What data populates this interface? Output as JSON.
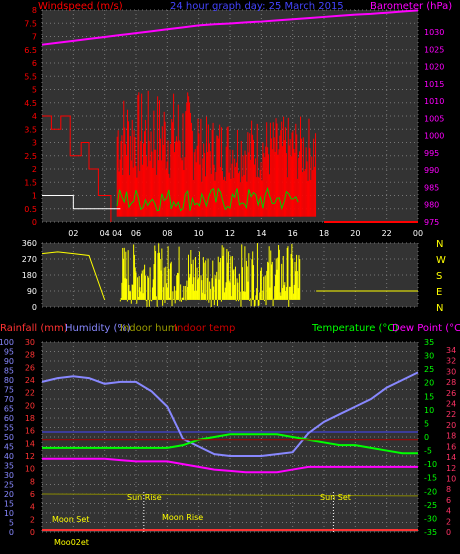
{
  "header": {
    "title": "24 hour graph day: 25 March 2015",
    "left_label": "Windspeed (m/s)",
    "right_label": "Barometer (hPa)"
  },
  "colors": {
    "wind": "#ff0000",
    "gust": "#00cc00",
    "baro": "#ff00ff",
    "dir": "#ffff00",
    "rain": "#ff3333",
    "humidity": "#8888ff",
    "indoor_hum": "#888800",
    "indoor_temp": "#aa0000",
    "temp": "#00ff00",
    "dew": "#ff00ff",
    "grid": "#777777"
  },
  "wind_axis": [
    "8",
    "7.5",
    "7",
    "6.5",
    "6",
    "5.5",
    "5",
    "4.5",
    "4",
    "3.5",
    "3",
    "2.5",
    "2",
    "1.5",
    "1",
    "0.5",
    "0"
  ],
  "baro_axis": [
    "1030",
    "1025",
    "1020",
    "1015",
    "1010",
    "1005",
    "1000",
    "995",
    "990",
    "985",
    "980",
    "975"
  ],
  "time_axis": [
    "02",
    "04",
    "04",
    "06",
    "08",
    "10",
    "12",
    "14",
    "16",
    "18",
    "20",
    "22",
    "00"
  ],
  "dir_axis": [
    "360",
    "270",
    "180",
    "90",
    "0"
  ],
  "dir_letters": [
    "N",
    "W",
    "S",
    "E",
    "N"
  ],
  "bottom_labels": {
    "rain": "Rainfall (mm)",
    "humidity": "Humidity (%)",
    "indoor_hum": "Indoor hum",
    "indoor_temp": "Indoor temp",
    "temp": "Temperature (°C)",
    "dew": "Dew Point (°C)"
  },
  "hum_axis": [
    "100",
    "95",
    "90",
    "85",
    "80",
    "75",
    "70",
    "65",
    "60",
    "55",
    "50",
    "45",
    "40",
    "35",
    "30",
    "25",
    "20",
    "15",
    "10",
    "5",
    "0"
  ],
  "rain_axis": [
    "30",
    "28",
    "26",
    "24",
    "22",
    "20",
    "18",
    "16",
    "14",
    "12",
    "10",
    "8",
    "6",
    "4",
    "2",
    "0"
  ],
  "temp_axis": [
    "35",
    "30",
    "25",
    "20",
    "15",
    "10",
    "5",
    "0",
    "-5",
    "-10",
    "-15",
    "-20",
    "-25",
    "-30",
    "-35"
  ],
  "temp_axis2": [
    "34",
    "32",
    "30",
    "28",
    "26",
    "24",
    "22",
    "20",
    "18",
    "16",
    "14",
    "12",
    "10",
    "8",
    "6",
    "4",
    "2",
    "0"
  ],
  "annotations": {
    "moon_set": "Moon Set",
    "sun_rise": "Sun Rise",
    "moon_rise": "Moon Rise",
    "sun_set": "Sun Set",
    "moon_time": "Moo02et"
  },
  "chart_data": [
    {
      "type": "line",
      "title": "24 hour graph day: 25 March 2015",
      "ylabel": "Windspeed (m/s)",
      "y2label": "Barometer (hPa)",
      "x_hours": [
        1,
        2,
        3,
        4,
        5,
        6,
        7,
        8,
        9,
        10,
        11,
        12,
        13,
        14,
        15,
        16,
        17,
        18,
        19,
        20,
        21,
        22,
        23,
        24
      ],
      "series": [
        {
          "name": "Barometer (hPa)",
          "axis": "right",
          "values": [
            1021.5,
            1022.0,
            1022.5,
            1023.0,
            1023.5,
            1024.0,
            1024.5,
            1025.0,
            1025.5,
            1026.0,
            1026.3,
            1026.5,
            1026.8,
            1027.0,
            1027.3,
            1027.6,
            1027.9,
            1028.2,
            1028.5,
            1028.8,
            1029.0,
            1029.3,
            1029.6,
            1029.9
          ]
        }
      ],
      "ylim": [
        0,
        8
      ],
      "y2lim": [
        975,
        1030
      ]
    },
    {
      "type": "line",
      "ylim": [
        0,
        360
      ],
      "x_hours": [
        0,
        1,
        2,
        3,
        4,
        5,
        6,
        7,
        8,
        9,
        10,
        11,
        12,
        13,
        14,
        15,
        16,
        17,
        18,
        19,
        20,
        21,
        22,
        23,
        24
      ],
      "values": [
        300,
        310,
        300,
        290,
        40,
        60,
        200,
        220,
        180,
        210,
        200,
        190,
        230,
        200,
        210,
        190,
        210,
        150,
        90,
        90,
        90,
        90,
        90,
        90,
        90
      ]
    },
    {
      "type": "line",
      "x_hours": [
        0,
        1,
        2,
        3,
        4,
        5,
        6,
        7,
        8,
        9,
        10,
        11,
        12,
        13,
        14,
        15,
        16,
        17,
        18,
        19,
        20,
        21,
        22,
        23,
        24
      ],
      "series": [
        {
          "name": "Humidity (%)",
          "axis": "left",
          "values": [
            79,
            81,
            82,
            81,
            78,
            79,
            79,
            74,
            66,
            49,
            45,
            41,
            40,
            40,
            40,
            41,
            42,
            52,
            58,
            62,
            66,
            70,
            76,
            80,
            84
          ]
        },
        {
          "name": "Temperature (°C)",
          "axis": "right",
          "values": [
            -4,
            -4,
            -4,
            -4,
            -4,
            -4,
            -4,
            -4,
            -4,
            -3,
            -1,
            0,
            1,
            1,
            1,
            1,
            0,
            -1,
            -2,
            -3,
            -3,
            -4,
            -5,
            -6,
            -6
          ]
        },
        {
          "name": "Dew Point (°C)",
          "axis": "right",
          "values": [
            -8,
            -8,
            -8,
            -8,
            -8,
            -8.5,
            -9,
            -9,
            -9,
            -10,
            -11,
            -12,
            -12.5,
            -13,
            -13,
            -13,
            -12,
            -11,
            -11,
            -11,
            -11,
            -11,
            -11,
            -11,
            -11
          ]
        },
        {
          "name": "Rainfall (mm)",
          "axis": "left",
          "values": [
            0,
            0,
            0,
            0,
            0,
            0,
            0,
            0,
            0,
            0,
            0,
            0,
            0,
            0,
            0,
            0,
            0,
            0,
            0,
            0,
            0,
            0,
            0,
            0,
            0
          ]
        }
      ],
      "ylim": [
        0,
        100
      ],
      "y2lim": [
        -35,
        35
      ]
    }
  ]
}
